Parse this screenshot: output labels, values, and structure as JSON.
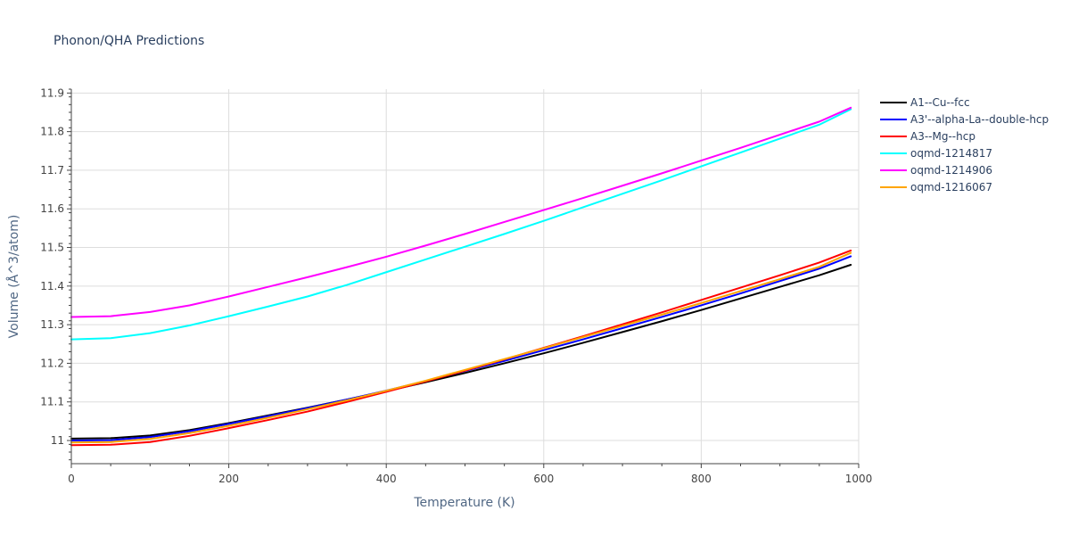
{
  "chart_data": {
    "type": "line",
    "title": "Phonon/QHA Predictions",
    "xlabel": "Temperature (K)",
    "ylabel": "Volume (Å^3/atom)",
    "xlim": [
      0,
      1000
    ],
    "ylim": [
      10.94,
      11.91
    ],
    "x_ticks": [
      0,
      200,
      400,
      600,
      800,
      1000
    ],
    "y_ticks": [
      11,
      11.1,
      11.2,
      11.3,
      11.4,
      11.5,
      11.6,
      11.7,
      11.8,
      11.9
    ],
    "grid": true,
    "legend_position": "top-right",
    "series": [
      {
        "name": "A1--Cu--fcc",
        "color": "#000000",
        "x": [
          0,
          50,
          100,
          150,
          200,
          250,
          300,
          350,
          400,
          450,
          500,
          550,
          600,
          650,
          700,
          750,
          800,
          850,
          900,
          950,
          990
        ],
        "y": [
          11.005,
          11.006,
          11.013,
          11.027,
          11.045,
          11.065,
          11.085,
          11.106,
          11.128,
          11.151,
          11.175,
          11.2,
          11.226,
          11.253,
          11.281,
          11.309,
          11.338,
          11.368,
          11.398,
          11.428,
          11.455
        ]
      },
      {
        "name": "A3'--alpha-La--double-hcp",
        "color": "#0000ff",
        "x": [
          0,
          50,
          100,
          150,
          200,
          250,
          300,
          350,
          400,
          450,
          500,
          550,
          600,
          650,
          700,
          750,
          800,
          850,
          900,
          950,
          990
        ],
        "y": [
          11.0,
          11.001,
          11.009,
          11.024,
          11.043,
          11.063,
          11.084,
          11.106,
          11.129,
          11.154,
          11.18,
          11.206,
          11.234,
          11.262,
          11.291,
          11.32,
          11.35,
          11.381,
          11.413,
          11.445,
          11.477
        ]
      },
      {
        "name": "A3--Mg--hcp",
        "color": "#ff0000",
        "x": [
          0,
          50,
          100,
          150,
          200,
          250,
          300,
          350,
          400,
          450,
          500,
          550,
          600,
          650,
          700,
          750,
          800,
          850,
          900,
          950,
          990
        ],
        "y": [
          10.988,
          10.989,
          10.996,
          11.012,
          11.032,
          11.053,
          11.075,
          11.1,
          11.126,
          11.153,
          11.181,
          11.21,
          11.24,
          11.27,
          11.301,
          11.332,
          11.364,
          11.396,
          11.428,
          11.461,
          11.492
        ]
      },
      {
        "name": "oqmd-1214817",
        "color": "#00ffff",
        "x": [
          0,
          50,
          100,
          150,
          200,
          250,
          300,
          350,
          400,
          450,
          500,
          550,
          600,
          650,
          700,
          750,
          800,
          850,
          900,
          950,
          990
        ],
        "y": [
          11.262,
          11.265,
          11.278,
          11.298,
          11.322,
          11.347,
          11.373,
          11.403,
          11.436,
          11.469,
          11.502,
          11.535,
          11.569,
          11.604,
          11.639,
          11.674,
          11.71,
          11.746,
          11.782,
          11.818,
          11.858
        ]
      },
      {
        "name": "oqmd-1214906",
        "color": "#ff00ff",
        "x": [
          0,
          50,
          100,
          150,
          200,
          250,
          300,
          350,
          400,
          450,
          500,
          550,
          600,
          650,
          700,
          750,
          800,
          850,
          900,
          950,
          990
        ],
        "y": [
          11.32,
          11.322,
          11.333,
          11.35,
          11.373,
          11.398,
          11.423,
          11.449,
          11.476,
          11.505,
          11.535,
          11.566,
          11.597,
          11.628,
          11.66,
          11.692,
          11.725,
          11.758,
          11.792,
          11.826,
          11.862
        ]
      },
      {
        "name": "oqmd-1216067",
        "color": "#ffa500",
        "x": [
          0,
          50,
          100,
          150,
          200,
          250,
          300,
          350,
          400,
          450,
          500,
          550,
          600,
          650,
          700,
          750,
          800,
          850,
          900,
          950,
          990
        ],
        "y": [
          10.995,
          10.996,
          11.004,
          11.019,
          11.038,
          11.059,
          11.081,
          11.104,
          11.129,
          11.155,
          11.183,
          11.211,
          11.239,
          11.268,
          11.297,
          11.326,
          11.356,
          11.387,
          11.418,
          11.45,
          11.486
        ]
      }
    ]
  }
}
